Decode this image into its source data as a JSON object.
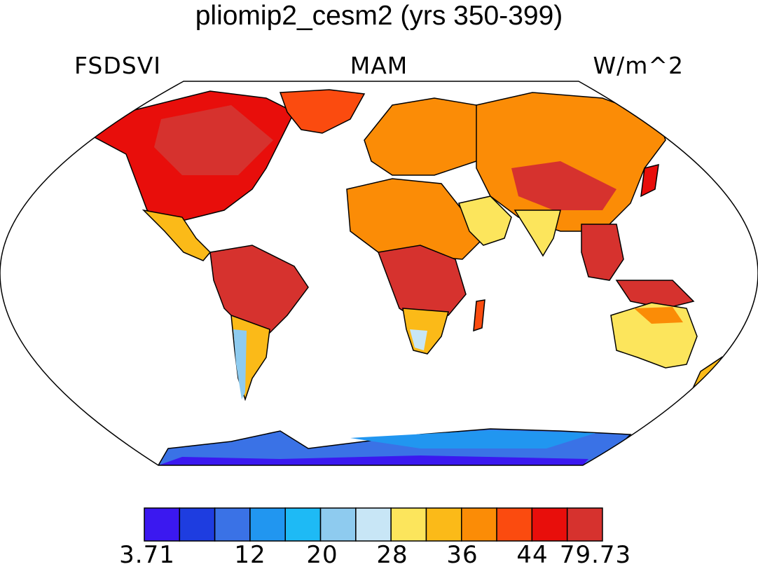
{
  "title": "pliomip2_cesm2 (yrs 350-399)",
  "variable": "FSDSVI",
  "season": "MAM",
  "units": "W/m^2",
  "projection": "Robinson",
  "colorbar": {
    "colors": [
      "#3b18f0",
      "#1e3de0",
      "#3a72e6",
      "#2196f0",
      "#1ebaf5",
      "#8ecbef",
      "#c8e6f6",
      "#fce55c",
      "#fbba18",
      "#fb8c06",
      "#fb4b0f",
      "#e80e0b",
      "#d6322e"
    ],
    "tick_labels": [
      "3.71",
      "12",
      "20",
      "28",
      "36",
      "44",
      "79.73"
    ]
  },
  "regions": [
    {
      "name": "north-america",
      "value": 42
    },
    {
      "name": "greenland",
      "value": 42
    },
    {
      "name": "central-america",
      "value": 38
    },
    {
      "name": "south-america-north",
      "value": 46
    },
    {
      "name": "patagonia",
      "value": 24
    },
    {
      "name": "europe",
      "value": 38
    },
    {
      "name": "north-africa",
      "value": 42
    },
    {
      "name": "central-africa",
      "value": 46
    },
    {
      "name": "southern-africa",
      "value": 28
    },
    {
      "name": "siberia",
      "value": 42
    },
    {
      "name": "middle-east",
      "value": 30
    },
    {
      "name": "india",
      "value": 30
    },
    {
      "name": "southeast-asia",
      "value": 46
    },
    {
      "name": "australia",
      "value": 30
    },
    {
      "name": "antarctica",
      "value": 10
    }
  ]
}
